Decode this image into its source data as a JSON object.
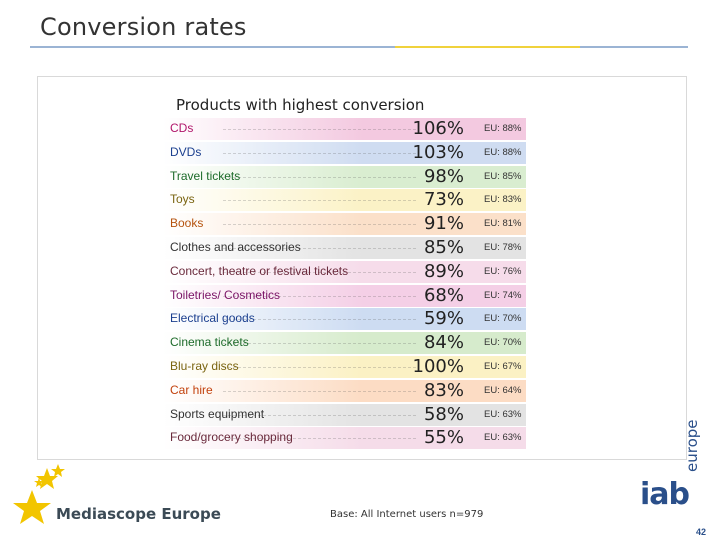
{
  "slide": {
    "title": "Conversion rates",
    "footer_note": "Base: All Internet users n=979",
    "brand_left": "Mediascope Europe",
    "brand_right": "iab",
    "brand_right_sub": "europe",
    "page_number": "42"
  },
  "chart_data": {
    "type": "table",
    "title": "Products with highest conversion",
    "rows": [
      {
        "category": "CDs",
        "value": "106%",
        "eu": "EU: 88%",
        "fill": "#f3c9e0",
        "label_color": "#b0156a"
      },
      {
        "category": "DVDs",
        "value": "103%",
        "eu": "EU: 88%",
        "fill": "#cfdcf1",
        "label_color": "#1b3f8f"
      },
      {
        "category": "Travel tickets",
        "value": "98%",
        "eu": "EU: 85%",
        "fill": "#d9edd0",
        "label_color": "#1d6b2a"
      },
      {
        "category": "Toys",
        "value": "73%",
        "eu": "EU: 83%",
        "fill": "#fbf2c6",
        "label_color": "#7a6410"
      },
      {
        "category": "Books",
        "value": "91%",
        "eu": "EU: 81%",
        "fill": "#fbe0c9",
        "label_color": "#b5530f"
      },
      {
        "category": "Clothes and accessories",
        "value": "85%",
        "eu": "EU: 78%",
        "fill": "#e3e3e3",
        "label_color": "#333333"
      },
      {
        "category": "Concert, theatre or festival tickets",
        "value": "89%",
        "eu": "EU: 76%",
        "fill": "#f6dcea",
        "label_color": "#6a2a3c"
      },
      {
        "category": "Toiletries/ Cosmetics",
        "value": "68%",
        "eu": "EU: 74%",
        "fill": "#f4cfe6",
        "label_color": "#7a1466"
      },
      {
        "category": "Electrical goods",
        "value": "59%",
        "eu": "EU: 70%",
        "fill": "#cddcf2",
        "label_color": "#1b3f8f"
      },
      {
        "category": "Cinema tickets",
        "value": "84%",
        "eu": "EU: 70%",
        "fill": "#d6ebcc",
        "label_color": "#1d6b2a"
      },
      {
        "category": "Blu-ray discs",
        "value": "100%",
        "eu": "EU: 67%",
        "fill": "#fbf1c4",
        "label_color": "#7a6410"
      },
      {
        "category": "Car hire",
        "value": "83%",
        "eu": "EU: 64%",
        "fill": "#fcdcc4",
        "label_color": "#c2410c"
      },
      {
        "category": "Sports equipment",
        "value": "58%",
        "eu": "EU: 63%",
        "fill": "#e3e3e3",
        "label_color": "#333333"
      },
      {
        "category": "Food/grocery shopping",
        "value": "55%",
        "eu": "EU: 63%",
        "fill": "#f5dce9",
        "label_color": "#6a2a3c"
      }
    ]
  }
}
